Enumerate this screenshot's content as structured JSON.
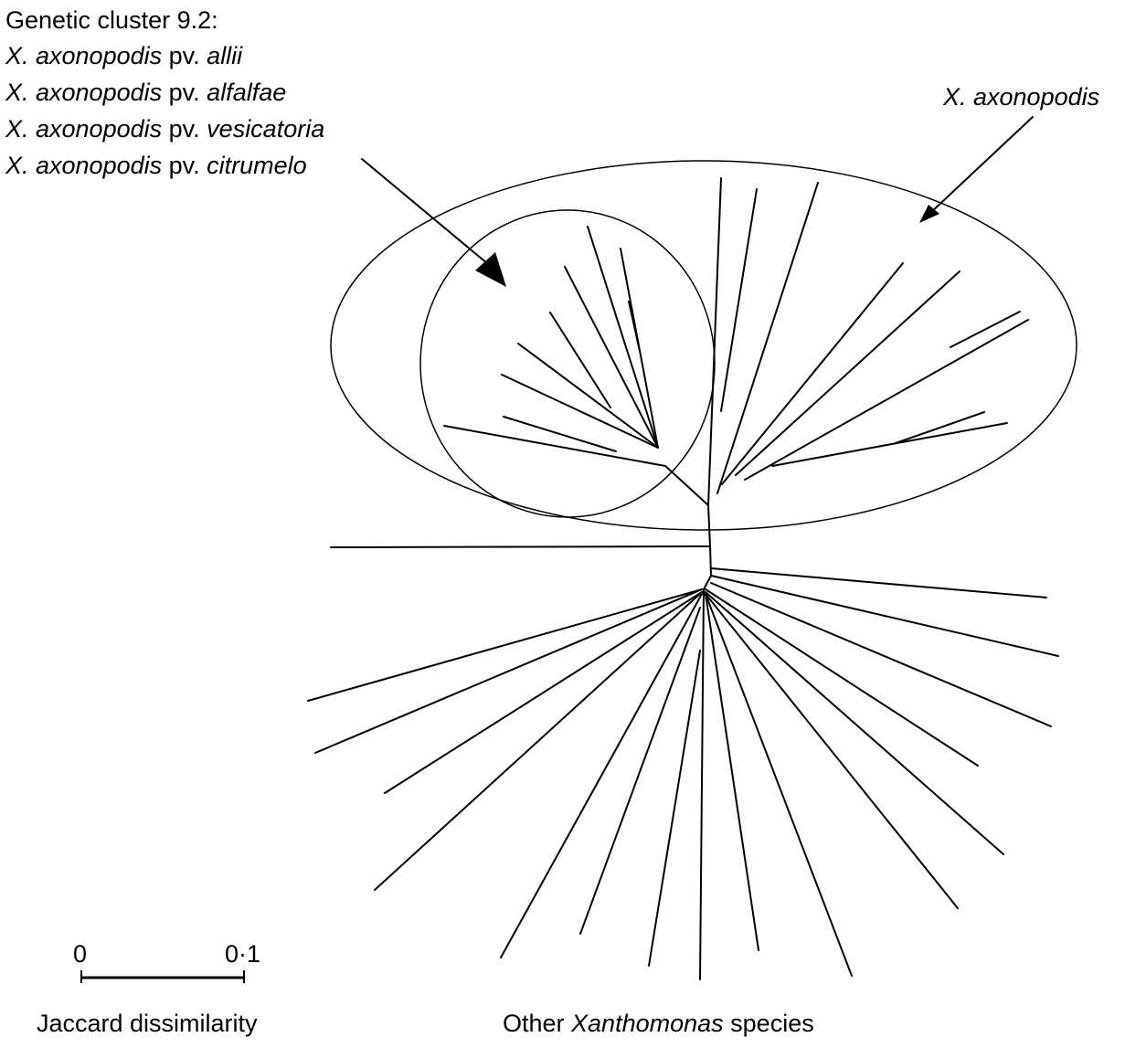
{
  "cluster_legend": {
    "heading": "Genetic cluster 9.2:",
    "entries": [
      {
        "species": "X. axonopodis",
        "pv": "pv.",
        "pathovar": "allii"
      },
      {
        "species": "X. axonopodis",
        "pv": "pv.",
        "pathovar": "alfalfae"
      },
      {
        "species": "X. axonopodis",
        "pv": "pv.",
        "pathovar": "vesicatoria"
      },
      {
        "species": "X. axonopodis",
        "pv": "pv.",
        "pathovar": "citrumelo"
      }
    ]
  },
  "group_label": "X. axonopodis",
  "scale_bar": {
    "start_label": "0",
    "end_label": "0·1",
    "caption": "Jaccard dissimilarity",
    "length_units": 0.1
  },
  "bottom_caption": {
    "prefix": "Other ",
    "genus": "Xanthomonas",
    "suffix": " species"
  }
}
